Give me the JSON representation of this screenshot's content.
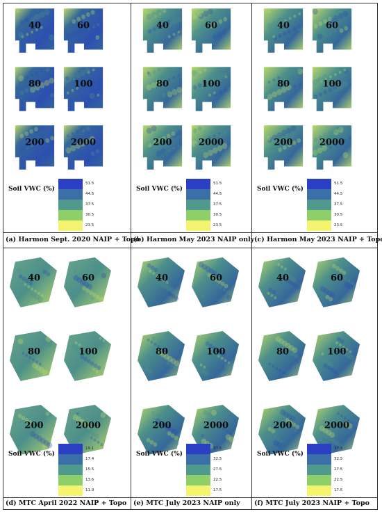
{
  "panels": [
    {
      "id": "a",
      "caption": "(a) Harmon Sept. 2020 NAIP + Topo",
      "site": "harmon",
      "variant": "dark",
      "maps": [
        "40",
        "60",
        "80",
        "100",
        "200",
        "2000"
      ],
      "legend": {
        "title": "Soil VWC (%)",
        "ticks": [
          "51.5",
          "44.5",
          "37.5",
          "30.5",
          "23.5"
        ]
      }
    },
    {
      "id": "b",
      "caption": "(b) Harmon May 2023 NAIP only",
      "site": "harmon",
      "variant": "mix",
      "maps": [
        "40",
        "60",
        "80",
        "100",
        "200",
        "2000"
      ],
      "legend": {
        "title": "Soil VWC (%)",
        "ticks": [
          "51.5",
          "44.5",
          "37.5",
          "30.5",
          "23.5"
        ]
      }
    },
    {
      "id": "c",
      "caption": "(c) Harmon May 2023 NAIP + Topo",
      "site": "harmon",
      "variant": "mix",
      "maps": [
        "40",
        "60",
        "80",
        "100",
        "200",
        "2000"
      ],
      "legend": {
        "title": "Soil VWC (%)",
        "ticks": [
          "51.5",
          "44.5",
          "37.5",
          "30.5",
          "23.5"
        ]
      }
    },
    {
      "id": "d",
      "caption": "(d) MTC April 2022 NAIP + Topo",
      "site": "mtc",
      "variant": "light",
      "maps": [
        "40",
        "60",
        "80",
        "100",
        "200",
        "2000"
      ],
      "legend": {
        "title": "Soil VWC (%)",
        "ticks": [
          "19.1",
          "17.4",
          "15.5",
          "13.6",
          "11.9"
        ]
      }
    },
    {
      "id": "e",
      "caption": "(e) MTC July 2023 NAIP only",
      "site": "mtc",
      "variant": "mix",
      "maps": [
        "40",
        "60",
        "80",
        "100",
        "200",
        "2000"
      ],
      "legend": {
        "title": "Soil VWC (%)",
        "ticks": [
          "37.5",
          "32.5",
          "27.5",
          "22.5",
          "17.5"
        ]
      }
    },
    {
      "id": "f",
      "caption": "(f) MTC July 2023 NAIP + Topo",
      "site": "mtc",
      "variant": "mix",
      "maps": [
        "40",
        "60",
        "80",
        "100",
        "200",
        "2000"
      ],
      "legend": {
        "title": "Soil VWC (%)",
        "ticks": [
          "37.5",
          "32.5",
          "27.5",
          "22.5",
          "17.5"
        ]
      }
    }
  ],
  "colors": {
    "legend": [
      "#2a3fc4",
      "#3b6fa8",
      "#4f9a8c",
      "#8fcf6a",
      "#f4f471"
    ],
    "dark": "#35679a",
    "mix": "#4c8f8a",
    "light": "#6aa58a",
    "hot": "#b9d96a",
    "deep": "#2c4fb0"
  }
}
